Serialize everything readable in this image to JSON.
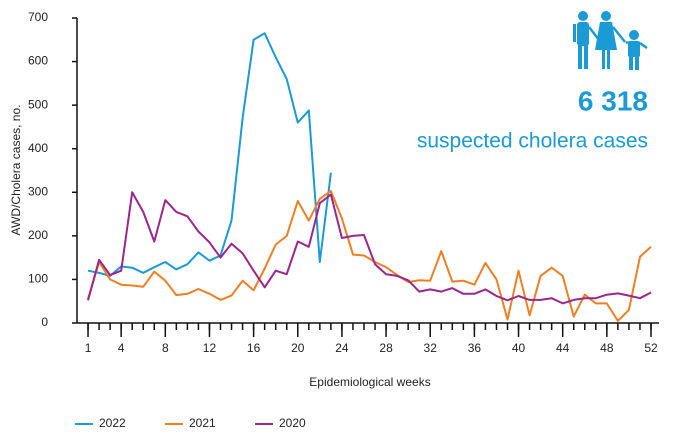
{
  "chart_data": {
    "type": "line",
    "y_label": "AWD/Cholera cases, no.",
    "x_label": "Epidemiological weeks",
    "annotation": {
      "number": "6 318",
      "text": "suspected cholera cases",
      "color": "#1a9ad6"
    },
    "x": [
      1,
      2,
      3,
      4,
      5,
      6,
      7,
      8,
      9,
      10,
      11,
      12,
      13,
      14,
      15,
      16,
      17,
      18,
      19,
      20,
      21,
      22,
      23,
      24,
      25,
      26,
      27,
      28,
      29,
      30,
      31,
      32,
      33,
      34,
      35,
      36,
      37,
      38,
      39,
      40,
      41,
      42,
      43,
      44,
      45,
      46,
      47,
      48,
      49,
      50,
      51,
      52
    ],
    "xlim": [
      0,
      52
    ],
    "xticks": [
      1,
      4,
      8,
      12,
      16,
      20,
      24,
      28,
      32,
      36,
      40,
      44,
      48,
      52
    ],
    "ylim": [
      0,
      700
    ],
    "yticks": [
      0,
      100,
      200,
      300,
      400,
      500,
      600,
      700
    ],
    "series": [
      {
        "name": "2022",
        "color": "#1a9ad6",
        "values": [
          120,
          115,
          108,
          130,
          127,
          115,
          128,
          140,
          123,
          135,
          162,
          143,
          155,
          235,
          470,
          650,
          665,
          610,
          560,
          460,
          488,
          140,
          345,
          null,
          null,
          null,
          null,
          null,
          null,
          null,
          null,
          null,
          null,
          null,
          null,
          null,
          null,
          null,
          null,
          null,
          null,
          null,
          null,
          null,
          null,
          null,
          null,
          null,
          null,
          null,
          null,
          null
        ]
      },
      {
        "name": "2021",
        "color": "#f07f24",
        "values": [
          55,
          140,
          100,
          88,
          86,
          83,
          118,
          97,
          64,
          67,
          78,
          67,
          53,
          63,
          97,
          75,
          125,
          180,
          200,
          280,
          235,
          285,
          303,
          240,
          157,
          155,
          140,
          128,
          110,
          94,
          98,
          97,
          165,
          95,
          97,
          88,
          138,
          100,
          8,
          120,
          18,
          108,
          127,
          108,
          15,
          65,
          45,
          45,
          5,
          30,
          152,
          175
        ]
      },
      {
        "name": "2020",
        "color": "#9b268f",
        "values": [
          52,
          145,
          110,
          120,
          300,
          255,
          187,
          282,
          255,
          245,
          210,
          185,
          150,
          182,
          160,
          120,
          82,
          120,
          112,
          187,
          175,
          275,
          295,
          195,
          200,
          202,
          135,
          112,
          108,
          98,
          72,
          77,
          72,
          80,
          67,
          67,
          77,
          62,
          52,
          62,
          53,
          53,
          57,
          45,
          53,
          57,
          57,
          65,
          68,
          63,
          57,
          70
        ]
      }
    ]
  }
}
